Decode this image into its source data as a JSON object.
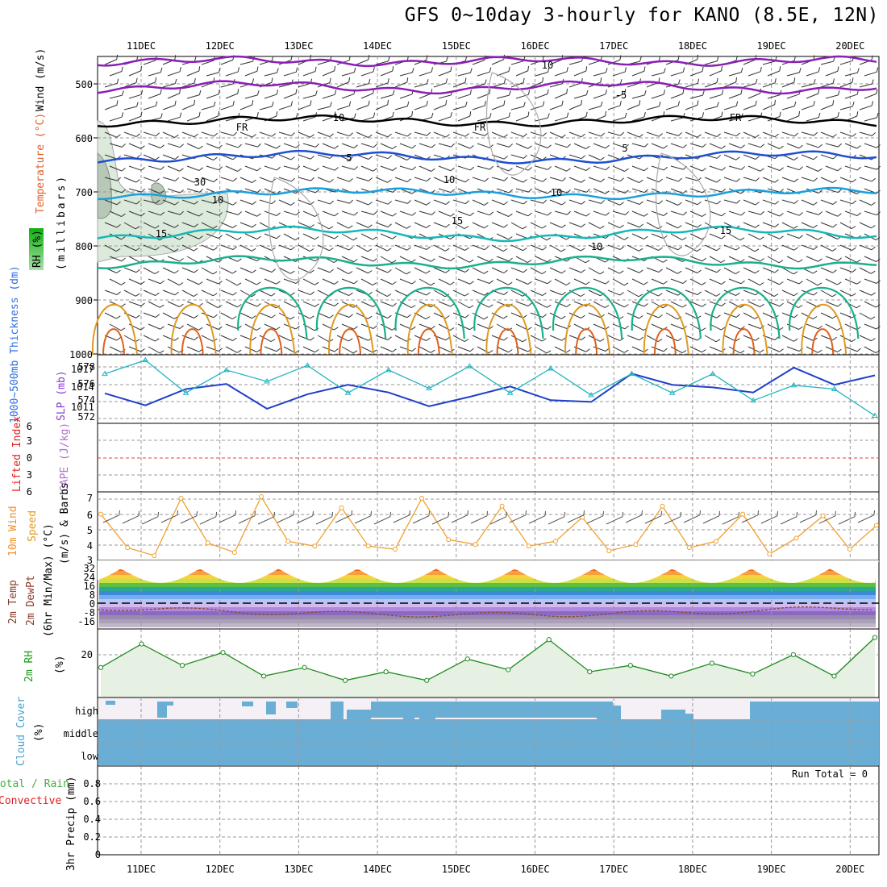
{
  "title": "GFS 0~10day 3-hourly for KANO (8.5E, 12N)",
  "dates": [
    "11DEC",
    "12DEC",
    "13DEC",
    "14DEC",
    "15DEC",
    "16DEC",
    "17DEC",
    "18DEC",
    "19DEC",
    "20DEC"
  ],
  "panels": {
    "upper": {
      "ylabel_wind": "Wind (m/s)",
      "ylabel_temp": "Temperature (°C)",
      "ylabel_rh": "RH (%)",
      "ylabel_mb": "(millibars)",
      "pressure_ticks": [
        "500",
        "600",
        "700",
        "800",
        "900",
        "1000"
      ],
      "contour_labels": [
        "-5",
        "FR",
        "FR",
        "FR",
        "5",
        "5",
        "10",
        "10",
        "15",
        "15",
        "15",
        "10",
        "10",
        "10",
        "10",
        "30"
      ]
    },
    "thickness": {
      "ylabel_thick": "1000~500mb Thickness (dm)",
      "ylabel_slp": "SLP (mb)",
      "left_ticks": [
        "578",
        "576",
        "574",
        "572"
      ],
      "right_ticks": [
        "1017",
        "1014",
        "1011"
      ]
    },
    "cape": {
      "ylabel_li": "Lifted Index",
      "ylabel_cape": "CAPE (J/kg)",
      "ticks": [
        "6",
        "3",
        "0",
        "3",
        "6"
      ]
    },
    "wind10m": {
      "ylabel_a": "10m Wind",
      "ylabel_b": "Speed",
      "ylabel_c": "(m/s) & Barbs",
      "ticks": [
        "7",
        "6",
        "5",
        "4",
        "3"
      ]
    },
    "temp": {
      "ylabel_a": "2m Temp",
      "ylabel_b": "2m DewPt",
      "ylabel_c": "(6hr Min/Max) (°C)",
      "ticks": [
        "32",
        "24",
        "16",
        "8",
        "0",
        "-8",
        "-16"
      ]
    },
    "rh": {
      "ylabel": "2m RH",
      "unit": "(%)",
      "ticks": [
        "20"
      ]
    },
    "cloud": {
      "ylabel": "Cloud Cover",
      "unit": "(%)",
      "levels": [
        "high",
        "middle",
        "low"
      ]
    },
    "precip": {
      "ylabel_a": "Total / Rain",
      "ylabel_b": "Convective",
      "ylabel_c": "3hr Precip (mm)",
      "ticks": [
        "0.8",
        "0.6",
        "0.4",
        "0.2",
        "0"
      ],
      "run_total": "Run Total = 0"
    }
  },
  "colors": {
    "temp_purple": "#8a1fb5",
    "freezing": "#000000",
    "temp5": "#1f4fd0",
    "temp10": "#1aa0dd",
    "temp15": "#14b8b8",
    "temp20": "#1ab08a",
    "temp25": "#e09a20",
    "temp30": "#e0601a",
    "rh_fill": "#dceadb",
    "slp": "#20b4c0",
    "thick": "#1f3fc8",
    "wind": "#f0a030",
    "dewpt": "#8a4a2a",
    "rh_line": "#208a20",
    "cloud": "#6aaed6"
  },
  "chart_data": [
    {
      "type": "line",
      "title": "1000~500mb Thickness (dm) and SLP (mb)",
      "x": [
        "11DEC",
        "11DEC",
        "12DEC",
        "12DEC",
        "13DEC",
        "13DEC",
        "14DEC",
        "14DEC",
        "15DEC",
        "15DEC",
        "16DEC",
        "16DEC",
        "17DEC",
        "17DEC",
        "18DEC",
        "18DEC",
        "19DEC",
        "19DEC",
        "20DEC",
        "20DEC"
      ],
      "series": [
        {
          "name": "Thickness (dm)",
          "axis": "left",
          "values": [
            575.0,
            573.6,
            575.5,
            576.1,
            573.2,
            574.9,
            576.0,
            575.1,
            573.5,
            574.6,
            575.8,
            574.2,
            574.0,
            577.3,
            576.0,
            575.7,
            575.1,
            578.0,
            576.0,
            577.1
          ]
        },
        {
          "name": "SLP (mb)",
          "axis": "right",
          "values": [
            1015.5,
            1017.3,
            1013.0,
            1016.0,
            1014.5,
            1016.6,
            1013.0,
            1016.0,
            1013.6,
            1016.5,
            1013.0,
            1016.2,
            1012.7,
            1015.5,
            1013.0,
            1015.5,
            1012.0,
            1014.0,
            1013.5,
            1010.0
          ]
        }
      ],
      "ylim_left": [
        571.5,
        579.5
      ],
      "ylim_right": [
        1009,
        1018
      ]
    },
    {
      "type": "line",
      "title": "10m Wind Speed (m/s)",
      "x": [
        "11DEC",
        "11DEC",
        "11DEC",
        "12DEC",
        "12DEC",
        "12DEC",
        "13DEC",
        "13DEC",
        "13DEC",
        "14DEC",
        "14DEC",
        "14DEC",
        "15DEC",
        "15DEC",
        "15DEC",
        "16DEC",
        "16DEC",
        "16DEC",
        "17DEC",
        "17DEC",
        "17DEC",
        "18DEC",
        "18DEC",
        "18DEC",
        "19DEC",
        "19DEC",
        "19DEC",
        "20DEC",
        "20DEC",
        "20DEC"
      ],
      "series": [
        {
          "name": "Speed",
          "values": [
            5.9,
            3.8,
            3.3,
            6.9,
            4.1,
            3.5,
            7.0,
            4.2,
            3.9,
            6.3,
            3.9,
            3.7,
            6.9,
            4.3,
            4.0,
            6.4,
            3.9,
            4.2,
            5.7,
            3.6,
            4.0,
            6.4,
            3.8,
            4.2,
            5.9,
            3.4,
            4.4,
            5.8,
            3.7,
            5.2
          ]
        }
      ],
      "ylim": [
        3,
        7.3
      ]
    },
    {
      "type": "line",
      "title": "2m Temp / DewPt (°C)",
      "x": [
        "11DEC",
        "12DEC",
        "13DEC",
        "14DEC",
        "15DEC",
        "16DEC",
        "17DEC",
        "18DEC",
        "19DEC",
        "20DEC"
      ],
      "series": [
        {
          "name": "Max Temp",
          "values": [
            32,
            33,
            30,
            30,
            30,
            31,
            31,
            30,
            30,
            28
          ]
        },
        {
          "name": "Min Temp",
          "values": [
            16,
            18,
            16,
            16,
            16,
            16,
            16,
            16,
            16,
            16
          ]
        },
        {
          "name": "DewPt",
          "values": [
            0,
            -2,
            -6,
            -12,
            -8,
            -4,
            -6,
            -8,
            -6,
            -1
          ]
        }
      ],
      "ylim": [
        -22,
        36
      ]
    },
    {
      "type": "line",
      "title": "2m RH (%)",
      "x": [
        "11DEC",
        "11DEC",
        "12DEC",
        "12DEC",
        "13DEC",
        "13DEC",
        "14DEC",
        "14DEC",
        "15DEC",
        "15DEC",
        "16DEC",
        "16DEC",
        "17DEC",
        "17DEC",
        "18DEC",
        "18DEC",
        "19DEC",
        "19DEC",
        "20DEC",
        "20DEC"
      ],
      "series": [
        {
          "name": "RH",
          "values": [
            14,
            25,
            15,
            21,
            10,
            14,
            8,
            12,
            8,
            18,
            13,
            27,
            12,
            15,
            10,
            16,
            11,
            20,
            10,
            28
          ]
        }
      ],
      "ylim": [
        0,
        32
      ]
    },
    {
      "type": "bar",
      "title": "3hr Precip (mm)",
      "categories": [
        "11DEC",
        "12DEC",
        "13DEC",
        "14DEC",
        "15DEC",
        "16DEC",
        "17DEC",
        "18DEC",
        "19DEC",
        "20DEC"
      ],
      "values": [
        0,
        0,
        0,
        0,
        0,
        0,
        0,
        0,
        0,
        0
      ],
      "ylim": [
        0,
        1
      ]
    }
  ]
}
